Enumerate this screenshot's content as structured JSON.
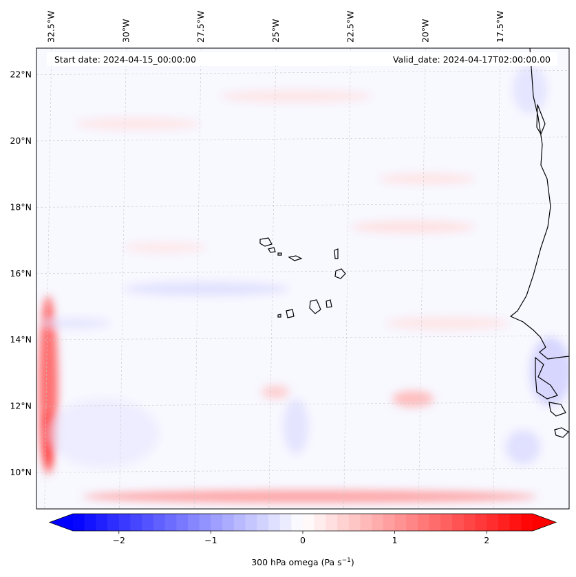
{
  "map": {
    "variable_label": "300 hPa omega (Pa s",
    "variable_exponent": "−1",
    "variable_close": ")",
    "start_date": "Start date: 2024-04-15_00:00:00",
    "valid_date": "Valid_date: 2024-04-17T02:00:00.00",
    "extent": {
      "lon_min": -33.0,
      "lon_max": -15.2,
      "lat_min": 8.9,
      "lat_max": 22.8
    },
    "longitudes": [
      {
        "value": -32.5,
        "label": "32.5°W"
      },
      {
        "value": -30.0,
        "label": "30°W"
      },
      {
        "value": -27.5,
        "label": "27.5°W"
      },
      {
        "value": -25.0,
        "label": "25°W"
      },
      {
        "value": -22.5,
        "label": "22.5°W"
      },
      {
        "value": -20.0,
        "label": "20°W"
      },
      {
        "value": -17.5,
        "label": "17.5°W"
      }
    ],
    "latitudes": [
      {
        "value": 22,
        "label": "22°N"
      },
      {
        "value": 20,
        "label": "20°N"
      },
      {
        "value": 18,
        "label": "18°N"
      },
      {
        "value": 16,
        "label": "16°N"
      },
      {
        "value": 14,
        "label": "14°N"
      },
      {
        "value": 12,
        "label": "12°N"
      },
      {
        "value": 10,
        "label": "10°N"
      }
    ]
  },
  "colorbar": {
    "ticks": [
      {
        "value": -2,
        "label": "−2"
      },
      {
        "value": -1,
        "label": "−1"
      },
      {
        "value": 0,
        "label": "0"
      },
      {
        "value": 1,
        "label": "1"
      },
      {
        "value": 2,
        "label": "2"
      }
    ],
    "range": [
      -2.5,
      2.5
    ],
    "low_color": "#0000ff",
    "high_color": "#ff0000"
  },
  "colors": {
    "coastline": "#000000",
    "grid": "#c8c8c8"
  }
}
